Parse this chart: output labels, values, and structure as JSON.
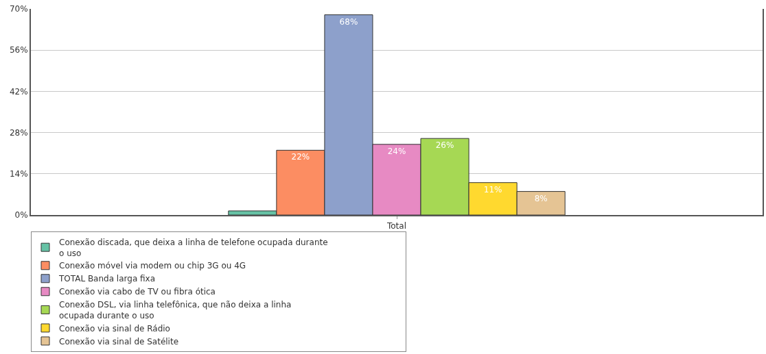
{
  "chart_data": {
    "type": "bar",
    "categories": [
      "Total"
    ],
    "series": [
      {
        "name": "Conexão discada, que deixa a linha de telefone ocupada durante o uso",
        "color": "#66c2a5",
        "values": [
          1.4
        ],
        "value_labels": [
          null
        ]
      },
      {
        "name": "Conexão móvel via modem ou chip 3G ou 4G",
        "color": "#fc8d62",
        "values": [
          22
        ],
        "value_labels": [
          "22%"
        ]
      },
      {
        "name": "TOTAL Banda larga fixa",
        "color": "#8da0cb",
        "values": [
          68
        ],
        "value_labels": [
          "68%"
        ]
      },
      {
        "name": "Conexão via cabo de TV ou fibra ótica",
        "color": "#e78ac3",
        "values": [
          24
        ],
        "value_labels": [
          "24%"
        ]
      },
      {
        "name": "Conexão DSL, via linha telefônica, que não deixa a linha ocupada durante o uso",
        "color": "#a6d854",
        "values": [
          26
        ],
        "value_labels": [
          "26%"
        ]
      },
      {
        "name": "Conexão via sinal de Rádio",
        "color": "#ffd92f",
        "values": [
          11
        ],
        "value_labels": [
          "11%"
        ]
      },
      {
        "name": "Conexão via sinal de Satélite",
        "color": "#e5c494",
        "values": [
          8
        ],
        "value_labels": [
          "8%"
        ]
      }
    ],
    "ylim": [
      0,
      70
    ],
    "yticks": [
      {
        "value": 0,
        "label": "0%"
      },
      {
        "value": 14,
        "label": "14%"
      },
      {
        "value": 28,
        "label": "28%"
      },
      {
        "value": 42,
        "label": "42%"
      },
      {
        "value": 56,
        "label": "56%"
      },
      {
        "value": 70,
        "label": "70%"
      }
    ],
    "grid": "y",
    "legend": "bottom"
  }
}
